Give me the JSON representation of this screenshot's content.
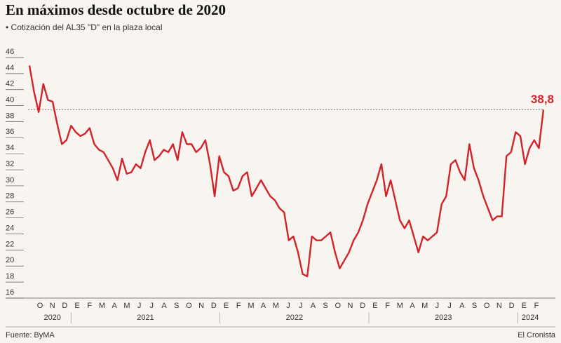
{
  "chart_data": {
    "type": "line",
    "title": "En máximos desde octubre de 2020",
    "subtitle": "• Cotización del AL35 \"D\" en la plaza local",
    "source": "Fuente: ByMA",
    "credit": "El Cronista",
    "year_groups": [
      {
        "name": "2020",
        "categories": [
          "O",
          "N",
          "D"
        ]
      },
      {
        "name": "2021",
        "categories": [
          "E",
          "F",
          "M",
          "A",
          "M",
          "J",
          "J",
          "A",
          "S",
          "O",
          "N",
          "D"
        ]
      },
      {
        "name": "2022",
        "categories": [
          "E",
          "F",
          "M",
          "A",
          "M",
          "J",
          "J",
          "A",
          "S",
          "O",
          "N",
          "D"
        ]
      },
      {
        "name": "2023",
        "categories": [
          "E",
          "F",
          "M",
          "A",
          "M",
          "J",
          "J",
          "A",
          "S",
          "O",
          "N",
          "D"
        ]
      },
      {
        "name": "2024",
        "categories": [
          "E",
          "F"
        ]
      }
    ],
    "series": [
      {
        "name": "AL35 D",
        "color": "#d2232a",
        "values": [
          44.3,
          41,
          38.5,
          42,
          40,
          39.8,
          37,
          34.5,
          35,
          36.8,
          36,
          35.5,
          35.8,
          36.5,
          34.5,
          33.8,
          33.5,
          32.5,
          31.5,
          30,
          32.7,
          30.8,
          31,
          32,
          31.5,
          33.5,
          35,
          32.5,
          33,
          33.8,
          33.5,
          34.5,
          32.5,
          36,
          34.5,
          34.5,
          33.5,
          34,
          35,
          32,
          28,
          33,
          31,
          30.5,
          28.7,
          29,
          30.5,
          31,
          28,
          29,
          30,
          29,
          28,
          27.5,
          26.5,
          26,
          22.5,
          23,
          21,
          18.3,
          18,
          23,
          22.5,
          22.5,
          23,
          23.5,
          21,
          19,
          20,
          21,
          22.5,
          23.5,
          25,
          27,
          28.5,
          30,
          32,
          28,
          30,
          27.5,
          25,
          24,
          25,
          23,
          21,
          23,
          22.5,
          23,
          23.5,
          27,
          28,
          32,
          32.5,
          31,
          30,
          34.5,
          31.5,
          30,
          28,
          26.5,
          25,
          25.5,
          25.5,
          33,
          33.5,
          36,
          35.5,
          32,
          34,
          35,
          34,
          38.8
        ]
      }
    ],
    "annotation": {
      "label": "38,8",
      "value": 38.8
    },
    "ylim": [
      16,
      46
    ],
    "yticks": [
      16,
      18,
      20,
      22,
      24,
      26,
      28,
      30,
      32,
      34,
      36,
      38,
      40,
      42,
      44,
      46
    ]
  }
}
